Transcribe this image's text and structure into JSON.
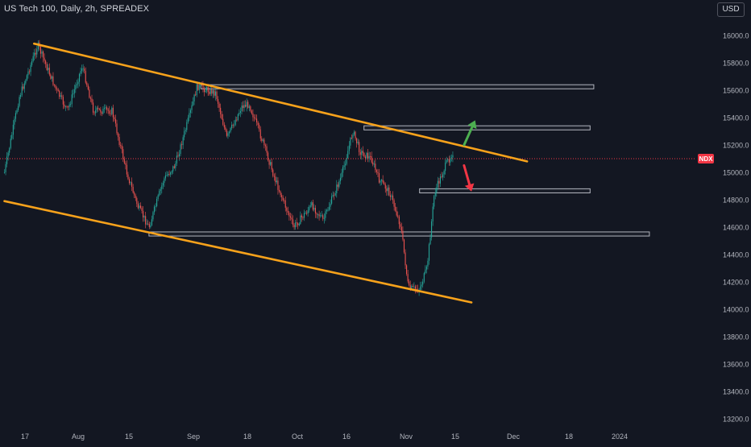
{
  "header": {
    "title": "US Tech 100, Daily, 2h, SPREADEX",
    "currency_button": "USD"
  },
  "colors": {
    "background": "#131722",
    "up_candle": "#26a69a",
    "down_candle": "#ef5350",
    "trendline": "#f7a21b",
    "zone_border": "#b2b5be",
    "price_line": "#f23645",
    "arrow_up": "#4caf50",
    "arrow_down": "#f23645"
  },
  "chart_data": {
    "type": "candlestick",
    "symbol_badge": "NDX",
    "last_price": 15100,
    "x_tick_labels": [
      "17",
      "Aug",
      "15",
      "Sep",
      "18",
      "Oct",
      "16",
      "Nov",
      "15",
      "Dec",
      "18",
      "2024"
    ],
    "y_tick_labels": [
      "16000.0",
      "15800.0",
      "15600.0",
      "15400.0",
      "15200.0",
      "15000.0",
      "14800.0",
      "14600.0",
      "14400.0",
      "14200.0",
      "14000.0",
      "13800.0",
      "13600.0",
      "13400.0",
      "13200.0"
    ],
    "ylim": [
      13100,
      16050
    ],
    "price_path": [
      {
        "date": "2023-07-10",
        "price": 15000
      },
      {
        "date": "2023-07-14",
        "price": 15550
      },
      {
        "date": "2023-07-19",
        "price": 15930
      },
      {
        "date": "2023-07-24",
        "price": 15600
      },
      {
        "date": "2023-07-27",
        "price": 15450
      },
      {
        "date": "2023-07-31",
        "price": 15780
      },
      {
        "date": "2023-08-03",
        "price": 15450
      },
      {
        "date": "2023-08-08",
        "price": 15450
      },
      {
        "date": "2023-08-12",
        "price": 15000
      },
      {
        "date": "2023-08-15",
        "price": 14750
      },
      {
        "date": "2023-08-18",
        "price": 14600
      },
      {
        "date": "2023-08-22",
        "price": 14950
      },
      {
        "date": "2023-08-25",
        "price": 15050
      },
      {
        "date": "2023-08-29",
        "price": 15420
      },
      {
        "date": "2023-08-31",
        "price": 15630
      },
      {
        "date": "2023-09-05",
        "price": 15580
      },
      {
        "date": "2023-09-08",
        "price": 15250
      },
      {
        "date": "2023-09-12",
        "price": 15480
      },
      {
        "date": "2023-09-14",
        "price": 15500
      },
      {
        "date": "2023-09-18",
        "price": 15200
      },
      {
        "date": "2023-09-21",
        "price": 14950
      },
      {
        "date": "2023-09-26",
        "price": 14600
      },
      {
        "date": "2023-10-01",
        "price": 14760
      },
      {
        "date": "2023-10-04",
        "price": 14650
      },
      {
        "date": "2023-10-09",
        "price": 14980
      },
      {
        "date": "2023-10-12",
        "price": 15300
      },
      {
        "date": "2023-10-14",
        "price": 15150
      },
      {
        "date": "2023-10-17",
        "price": 15100
      },
      {
        "date": "2023-10-19",
        "price": 14950
      },
      {
        "date": "2023-10-22",
        "price": 14850
      },
      {
        "date": "2023-10-25",
        "price": 14600
      },
      {
        "date": "2023-10-27",
        "price": 14150
      },
      {
        "date": "2023-10-30",
        "price": 14150
      },
      {
        "date": "2023-11-01",
        "price": 14300
      },
      {
        "date": "2023-11-03",
        "price": 14850
      },
      {
        "date": "2023-11-06",
        "price": 15050
      },
      {
        "date": "2023-11-08",
        "price": 15150
      }
    ],
    "trendlines": [
      {
        "name": "upper",
        "start": {
          "date": "2023-07-18",
          "price": 15940
        },
        "end": {
          "date": "2023-11-28",
          "price": 15080
        }
      },
      {
        "name": "lower",
        "start": {
          "date": "2023-07-10",
          "price": 14790
        },
        "end": {
          "date": "2023-11-13",
          "price": 14050
        }
      }
    ],
    "zones": [
      {
        "start": "2023-09-01",
        "end": "2023-12-16",
        "top": 15640,
        "bottom": 15610
      },
      {
        "start": "2023-10-15",
        "end": "2023-12-15",
        "top": 15340,
        "bottom": 15310
      },
      {
        "start": "2023-10-30",
        "end": "2023-12-15",
        "top": 14880,
        "bottom": 14850
      },
      {
        "start": "2023-08-18",
        "end": "2023-12-31",
        "top": 14565,
        "bottom": 14535
      }
    ],
    "arrows": [
      {
        "direction": "up",
        "color": "#4caf50",
        "from": {
          "date": "2023-11-11",
          "price": 15200
        },
        "to": {
          "date": "2023-11-14",
          "price": 15380
        }
      },
      {
        "direction": "down",
        "color": "#f23645",
        "from": {
          "date": "2023-11-11",
          "price": 15050
        },
        "to": {
          "date": "2023-11-13",
          "price": 14860
        }
      }
    ]
  }
}
